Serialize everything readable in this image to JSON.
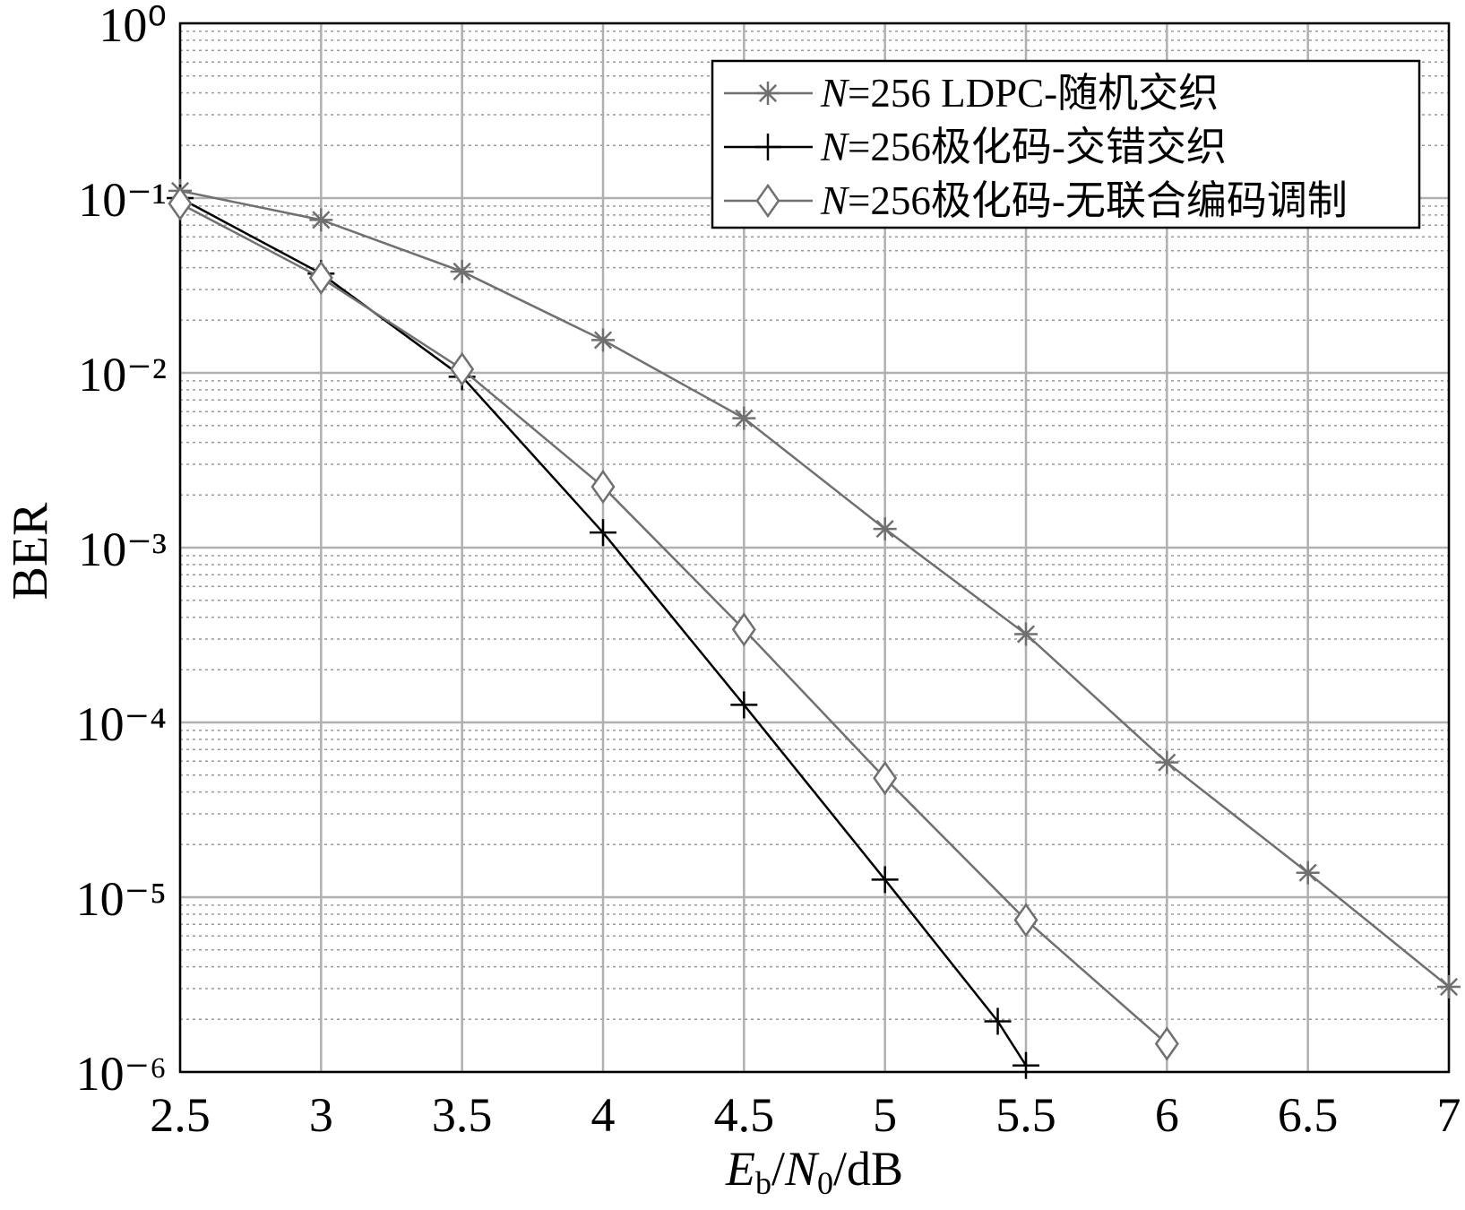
{
  "chart_data": {
    "type": "line",
    "xlabel": "Eb/N0/dB",
    "ylabel": "BER",
    "xlim": [
      2.5,
      7
    ],
    "xticks": [
      2.5,
      3,
      3.5,
      4,
      4.5,
      5,
      5.5,
      6,
      6.5,
      7
    ],
    "ylim": [
      1e-06,
      1
    ],
    "ylog": true,
    "yticks": [
      {
        "value": 1e-06,
        "label": "10⁻⁶"
      },
      {
        "value": 1e-05,
        "label": "10⁻⁵"
      },
      {
        "value": 0.0001,
        "label": "10⁻⁴"
      },
      {
        "value": 0.001,
        "label": "10⁻³"
      },
      {
        "value": 0.01,
        "label": "10⁻²"
      },
      {
        "value": 0.1,
        "label": "10⁻¹"
      },
      {
        "value": 1,
        "label": "10⁰"
      }
    ],
    "grid": true,
    "minor_grid": true,
    "legend": "upper right",
    "series": [
      {
        "name": "N=256 LDPC-随机交织",
        "color": "#707070",
        "marker": "asterisk",
        "x": [
          2.5,
          3,
          3.5,
          4,
          4.5,
          5,
          5.5,
          6,
          6.5,
          7
        ],
        "values": [
          0.11,
          0.075,
          0.038,
          0.0154,
          0.0055,
          0.00128,
          0.00032,
          5.9e-05,
          1.38e-05,
          3.07e-06
        ]
      },
      {
        "name": "N=256极化码-交错交织",
        "color": "#000000",
        "marker": "plus",
        "x": [
          2.5,
          3,
          3.5,
          4,
          4.5,
          5,
          5.4,
          5.5
        ],
        "values": [
          0.1,
          0.037,
          0.0095,
          0.00122,
          0.000126,
          1.26e-05,
          1.95e-06,
          1.09e-06
        ]
      },
      {
        "name": "N=256极化码-无联合编码调制",
        "color": "#707070",
        "marker": "diamond",
        "x": [
          2.5,
          3,
          3.5,
          4,
          4.5,
          5,
          5.5,
          6
        ],
        "values": [
          0.093,
          0.035,
          0.0105,
          0.00223,
          0.00034,
          4.8e-05,
          7.4e-06,
          1.45e-06
        ]
      }
    ]
  }
}
